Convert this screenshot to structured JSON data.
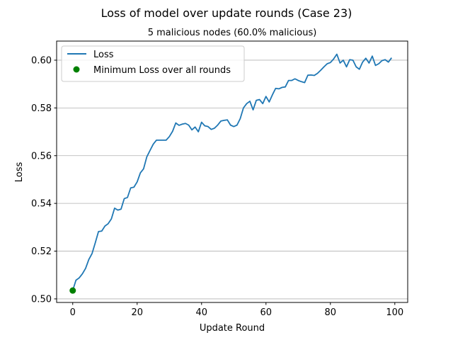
{
  "chart_data": {
    "type": "line",
    "title": "Loss of model over update rounds (Case 23)",
    "subtitle": "5 malicious nodes (60.0% malicious)",
    "xlabel": "Update Round",
    "ylabel": "Loss",
    "xlim": [
      -5.0,
      104.0
    ],
    "ylim": [
      0.4985,
      0.608
    ],
    "xticks": [
      0,
      20,
      40,
      60,
      80,
      100
    ],
    "yticks": [
      0.5,
      0.52,
      0.54,
      0.56,
      0.58,
      0.6
    ],
    "ytick_labels": [
      "0.50",
      "0.52",
      "0.54",
      "0.56",
      "0.58",
      "0.60"
    ],
    "grid": "horizontal",
    "legend_position": "top-left",
    "series": [
      {
        "name": "Loss",
        "color": "#1f77b4",
        "x": [
          0,
          1,
          2,
          3,
          4,
          5,
          6,
          7,
          8,
          9,
          10,
          11,
          12,
          13,
          14,
          15,
          16,
          17,
          18,
          19,
          20,
          21,
          22,
          23,
          24,
          25,
          26,
          27,
          28,
          29,
          30,
          31,
          32,
          33,
          34,
          35,
          36,
          37,
          38,
          39,
          40,
          41,
          42,
          43,
          44,
          45,
          46,
          47,
          48,
          49,
          50,
          51,
          52,
          53,
          54,
          55,
          56,
          57,
          58,
          59,
          60,
          61,
          62,
          63,
          64,
          65,
          66,
          67,
          68,
          69,
          70,
          71,
          72,
          73,
          74,
          75,
          76,
          77,
          78,
          79,
          80,
          81,
          82,
          83,
          84,
          85,
          86,
          87,
          88,
          89,
          90,
          91,
          92,
          93,
          94,
          95,
          96,
          97,
          98,
          99
        ],
        "values": [
          0.5035,
          0.5078,
          0.5088,
          0.5105,
          0.5128,
          0.5165,
          0.519,
          0.5235,
          0.5282,
          0.5284,
          0.5305,
          0.5315,
          0.5335,
          0.538,
          0.5372,
          0.5376,
          0.542,
          0.5425,
          0.5465,
          0.5468,
          0.549,
          0.5528,
          0.5545,
          0.5595,
          0.5622,
          0.5648,
          0.5665,
          0.5665,
          0.5665,
          0.5665,
          0.568,
          0.5702,
          0.5737,
          0.5727,
          0.5732,
          0.5735,
          0.5728,
          0.5708,
          0.572,
          0.57,
          0.574,
          0.5725,
          0.5722,
          0.571,
          0.5715,
          0.5728,
          0.5745,
          0.5748,
          0.575,
          0.5728,
          0.5722,
          0.5728,
          0.5755,
          0.58,
          0.5818,
          0.5828,
          0.5792,
          0.5832,
          0.5835,
          0.5818,
          0.5848,
          0.5825,
          0.5855,
          0.5882,
          0.588,
          0.5886,
          0.5888,
          0.5915,
          0.5915,
          0.5922,
          0.5915,
          0.591,
          0.5906,
          0.5937,
          0.5938,
          0.5936,
          0.5945,
          0.5958,
          0.5972,
          0.5985,
          0.599,
          0.6005,
          0.6025,
          0.5988,
          0.6,
          0.5972,
          0.6002,
          0.6,
          0.5972,
          0.5962,
          0.5992,
          0.6008,
          0.5988,
          0.6017,
          0.5978,
          0.5985,
          0.5998,
          0.6002,
          0.5992,
          0.601
        ]
      },
      {
        "name": "Minimum Loss over all rounds",
        "color": "#008000",
        "marker": "circle",
        "x": [
          0
        ],
        "values": [
          0.5035
        ]
      }
    ]
  }
}
